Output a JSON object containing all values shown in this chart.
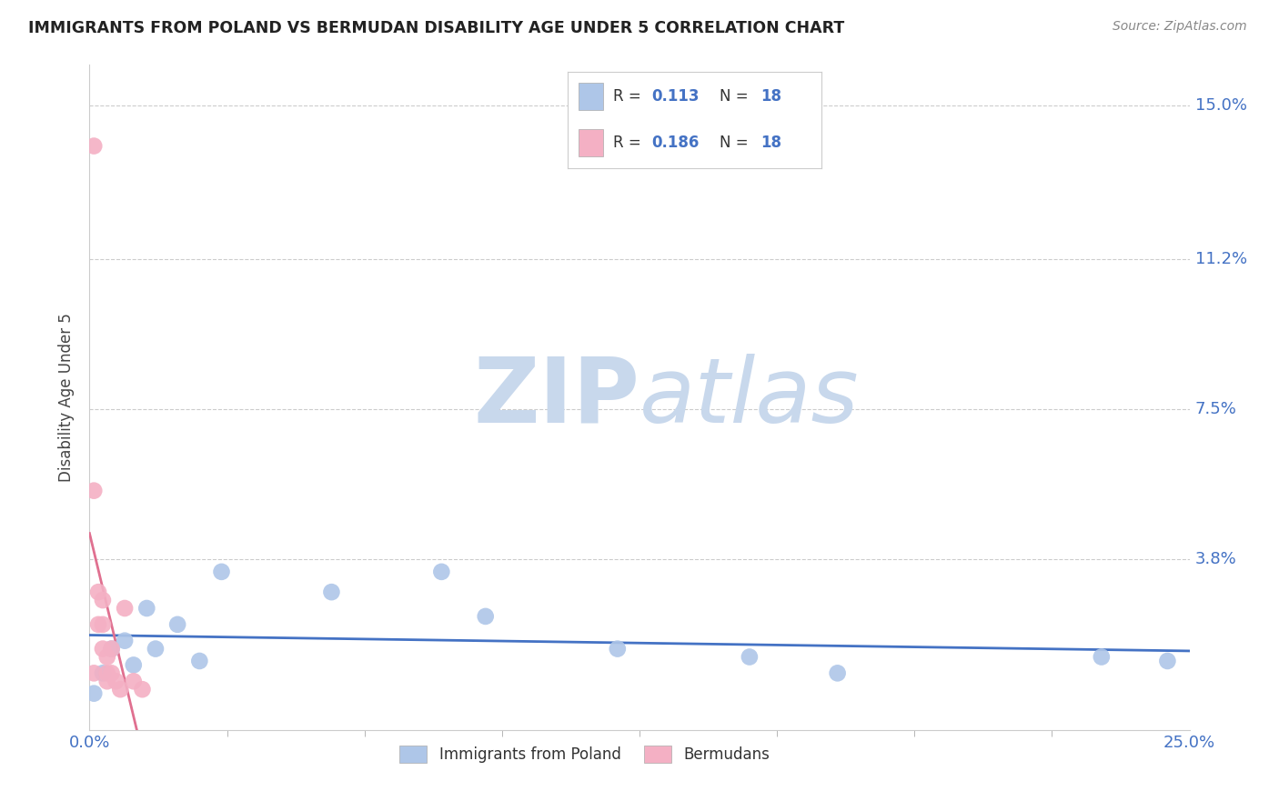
{
  "title": "IMMIGRANTS FROM POLAND VS BERMUDAN DISABILITY AGE UNDER 5 CORRELATION CHART",
  "source": "Source: ZipAtlas.com",
  "ylabel": "Disability Age Under 5",
  "xlim": [
    0.0,
    0.25
  ],
  "ylim": [
    -0.004,
    0.16
  ],
  "ytick_vals": [
    0.0,
    0.038,
    0.075,
    0.112,
    0.15
  ],
  "ytick_labels": [
    "",
    "3.8%",
    "7.5%",
    "11.2%",
    "15.0%"
  ],
  "blue_x": [
    0.001,
    0.003,
    0.005,
    0.008,
    0.01,
    0.013,
    0.015,
    0.02,
    0.025,
    0.03,
    0.055,
    0.08,
    0.09,
    0.12,
    0.15,
    0.17,
    0.23,
    0.245
  ],
  "blue_y": [
    0.005,
    0.01,
    0.016,
    0.018,
    0.012,
    0.026,
    0.016,
    0.022,
    0.013,
    0.035,
    0.03,
    0.035,
    0.024,
    0.016,
    0.014,
    0.01,
    0.014,
    0.013
  ],
  "pink_x": [
    0.001,
    0.001,
    0.001,
    0.002,
    0.002,
    0.003,
    0.003,
    0.003,
    0.004,
    0.004,
    0.004,
    0.005,
    0.005,
    0.006,
    0.007,
    0.008,
    0.01,
    0.012
  ],
  "pink_y": [
    0.14,
    0.055,
    0.01,
    0.03,
    0.022,
    0.028,
    0.022,
    0.016,
    0.014,
    0.01,
    0.008,
    0.016,
    0.01,
    0.008,
    0.006,
    0.026,
    0.008,
    0.006
  ],
  "blue_R": 0.113,
  "pink_R": 0.186,
  "N": 18,
  "blue_color": "#aec6e8",
  "pink_color": "#f4b0c4",
  "blue_line_color": "#4472c4",
  "pink_line_color": "#e07090",
  "gray_dashed_color": "#d0b0b8",
  "watermark_zip_color": "#c8d8e8",
  "watermark_atlas_color": "#c8d8e8",
  "grid_color": "#cccccc",
  "axis_label_color": "#4472c4",
  "legend_text_color": "#333333",
  "legend_value_color": "#4472c4"
}
